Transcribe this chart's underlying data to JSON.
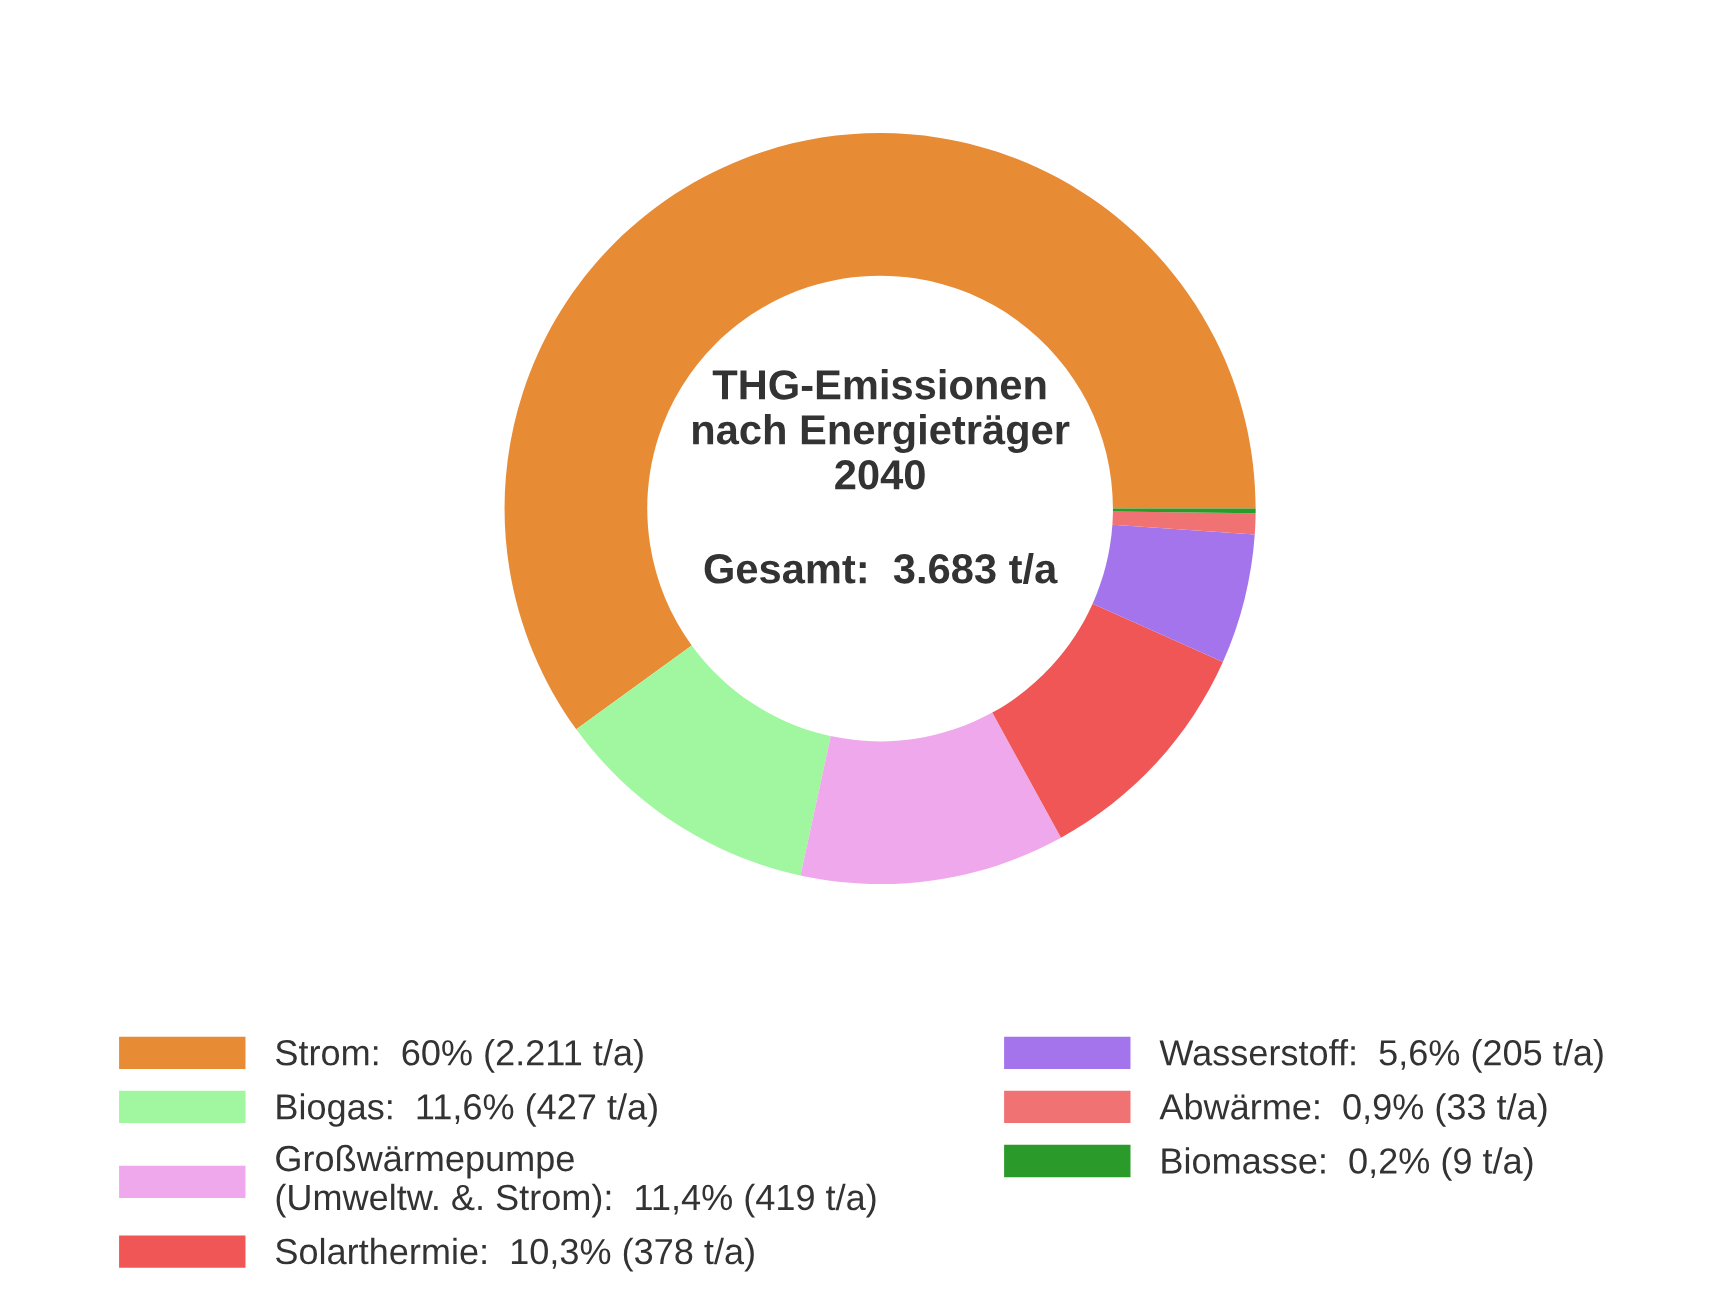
{
  "chart_data": {
    "type": "donut",
    "title": "THG-Emissionen\nnach Energieträger\n2040",
    "subtitle": "Gesamt:  3.683 t/a",
    "categories": [
      "Strom:  60% (2.211 t/a)",
      "Biogas:  11,6% (427 t/a)",
      "Großwärmepumpe\n(Umweltw. &. Strom):  11,4% (419 t/a)",
      "Solarthermie:  10,3% (378 t/a)",
      "Wasserstoff:  5,6% (205 t/a)",
      "Abwärme:  0,9% (33 t/a)",
      "Biomasse:  0,2% (9 t/a)"
    ],
    "values": [
      60,
      11.6,
      11.4,
      10.3,
      5.6,
      0.9,
      0.2
    ],
    "colors": [
      "#e88b35",
      "#a0f7a0",
      "#f0a8ec",
      "#f05656",
      "#a374ec",
      "#f07272",
      "#2a9a2a"
    ],
    "legend": "bottom"
  }
}
